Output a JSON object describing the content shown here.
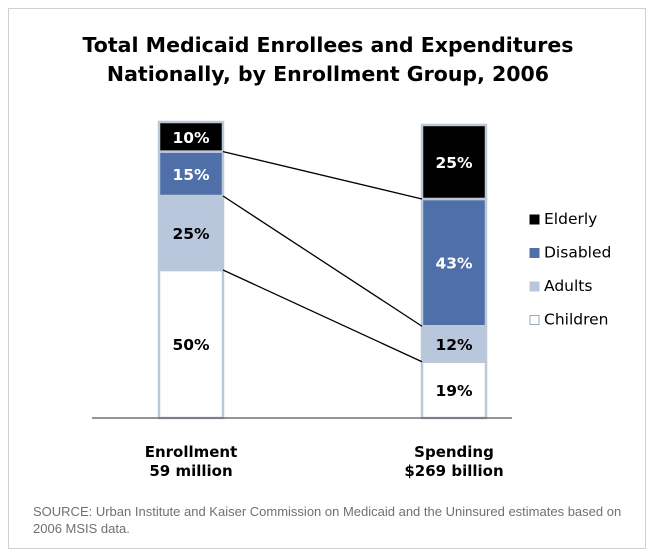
{
  "chart_data": {
    "type": "bar",
    "stacked": true,
    "title": "Total Medicaid Enrollees and Expenditures Nationally, by Enrollment Group, 2006",
    "title_lines": [
      "Total Medicaid Enrollees and Expenditures",
      "Nationally, by Enrollment Group, 2006"
    ],
    "categories": [
      {
        "name": "Enrollment",
        "subtitle": "59 million"
      },
      {
        "name": "Spending",
        "subtitle": "$269 billion"
      }
    ],
    "series": [
      {
        "name": "Children",
        "color": "#ffffff",
        "text_color": "#000000",
        "values": [
          50,
          19
        ],
        "labels": [
          "50%",
          "19%"
        ]
      },
      {
        "name": "Adults",
        "color": "#b9c7dc",
        "text_color": "#000000",
        "values": [
          25,
          12
        ],
        "labels": [
          "25%",
          "12%"
        ]
      },
      {
        "name": "Disabled",
        "color": "#4f6fa8",
        "text_color": "#ffffff",
        "values": [
          15,
          43
        ],
        "labels": [
          "15%",
          "43%"
        ]
      },
      {
        "name": "Elderly",
        "color": "#000000",
        "text_color": "#ffffff",
        "values": [
          10,
          25
        ],
        "labels": [
          "10%",
          "25%"
        ]
      }
    ],
    "legend_order": [
      "Elderly",
      "Disabled",
      "Adults",
      "Children"
    ],
    "legend_position": "right",
    "ylim": [
      0,
      100
    ],
    "grid": false,
    "connector_lines": true
  },
  "source_note": "SOURCE: Urban Institute and Kaiser Commission on Medicaid and the Uninsured estimates based on 2006 MSIS data.",
  "colors": {
    "bar_border": "#bcc7d8",
    "axis": "#555555",
    "source_text": "#707070"
  }
}
